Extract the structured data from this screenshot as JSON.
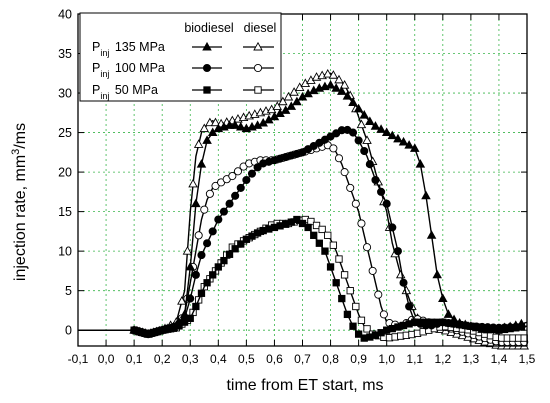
{
  "chart_data": {
    "type": "line",
    "title": "",
    "xlabel": "time from ET start, ms",
    "ylabel": "injection rate, mm3/ms",
    "ylabel_unit_power": "3",
    "xlim": [
      -0.1,
      1.5
    ],
    "ylim": [
      -2,
      40
    ],
    "x_ticks": [
      -0.1,
      0.0,
      0.1,
      0.2,
      0.3,
      0.4,
      0.5,
      0.6,
      0.7,
      0.8,
      0.9,
      1.0,
      1.1,
      1.2,
      1.3,
      1.4,
      1.5
    ],
    "x_tick_labels": [
      "-0,1",
      "0,0",
      "0,1",
      "0,2",
      "0,3",
      "0,4",
      "0,5",
      "0,6",
      "0,7",
      "0,8",
      "0,9",
      "1,0",
      "1,1",
      "1,2",
      "1,3",
      "1,4",
      "1,5"
    ],
    "y_ticks": [
      0,
      5,
      10,
      15,
      20,
      25,
      30,
      35,
      40
    ],
    "y_tick_labels": [
      "0",
      "5",
      "10",
      "15",
      "20",
      "25",
      "30",
      "35",
      "40"
    ],
    "grid": true,
    "legend": {
      "position": "top-left",
      "header_biodiesel": "biodiesel",
      "header_diesel": "diesel",
      "rows": [
        {
          "label": "P",
          "sub": "inj",
          "value": "135 MPa"
        },
        {
          "label": "P",
          "sub": "inj",
          "value": "100 MPa"
        },
        {
          "label": "P",
          "sub": "inj",
          "value": "50 MPa"
        }
      ]
    },
    "series": [
      {
        "fuel": "biodiesel",
        "pressure": "135 MPa",
        "marker": "triangle",
        "filled": true,
        "x": [
          -0.1,
          0.0,
          0.1,
          0.15,
          0.2,
          0.25,
          0.28,
          0.3,
          0.32,
          0.34,
          0.36,
          0.38,
          0.4,
          0.45,
          0.5,
          0.55,
          0.6,
          0.65,
          0.7,
          0.75,
          0.8,
          0.85,
          0.9,
          0.95,
          1.0,
          1.05,
          1.1,
          1.12,
          1.14,
          1.16,
          1.18,
          1.2,
          1.22,
          1.25,
          1.3,
          1.35,
          1.4,
          1.45,
          1.5
        ],
        "y": [
          0,
          0,
          0,
          -0.5,
          0,
          0.5,
          2,
          8,
          16,
          21,
          24,
          25,
          25.5,
          26,
          25.5,
          26,
          27,
          28,
          29.5,
          30.5,
          31,
          30,
          28,
          26,
          25,
          24,
          23,
          21,
          17,
          12,
          7,
          4,
          2,
          1,
          0.5,
          0,
          0.2,
          0.5,
          1
        ]
      },
      {
        "fuel": "biodiesel",
        "pressure": "100 MPa",
        "marker": "circle",
        "filled": true,
        "x": [
          -0.1,
          0.0,
          0.1,
          0.15,
          0.2,
          0.25,
          0.28,
          0.3,
          0.32,
          0.34,
          0.36,
          0.38,
          0.4,
          0.45,
          0.5,
          0.55,
          0.6,
          0.65,
          0.7,
          0.75,
          0.8,
          0.85,
          0.88,
          0.9,
          0.93,
          0.96,
          1.0,
          1.02,
          1.04,
          1.06,
          1.08,
          1.1,
          1.15,
          1.2,
          1.3,
          1.4,
          1.5
        ],
        "y": [
          0,
          0,
          0,
          -0.5,
          0,
          0.5,
          1.5,
          4,
          7,
          9.5,
          11,
          12.5,
          14,
          16.5,
          19,
          21,
          21.5,
          22,
          22.5,
          23.5,
          24.5,
          25.5,
          25,
          24,
          22,
          19,
          16,
          13,
          10,
          6,
          3,
          1,
          0.5,
          1,
          0.5,
          0.3,
          0.5
        ]
      },
      {
        "fuel": "biodiesel",
        "pressure": "50 MPa",
        "marker": "square",
        "filled": true,
        "x": [
          -0.1,
          0.0,
          0.1,
          0.15,
          0.2,
          0.25,
          0.3,
          0.32,
          0.35,
          0.4,
          0.45,
          0.5,
          0.55,
          0.6,
          0.65,
          0.68,
          0.7,
          0.72,
          0.75,
          0.78,
          0.8,
          0.82,
          0.84,
          0.86,
          0.88,
          0.9,
          0.92,
          0.95,
          1.0,
          1.05,
          1.1,
          1.2,
          1.3,
          1.4,
          1.5
        ],
        "y": [
          0,
          0,
          0,
          -0.5,
          0,
          0.3,
          1.5,
          3,
          5.5,
          8,
          10,
          11.5,
          12.5,
          13,
          13.5,
          14,
          13.5,
          13,
          11.5,
          10,
          8,
          6,
          4,
          2,
          0.5,
          -0.5,
          -1,
          -0.8,
          0,
          0.5,
          1,
          1,
          0.5,
          0,
          0.5
        ]
      },
      {
        "fuel": "diesel",
        "pressure": "135 MPa",
        "marker": "triangle",
        "filled": false,
        "x": [
          -0.1,
          0.0,
          0.1,
          0.15,
          0.2,
          0.25,
          0.28,
          0.3,
          0.32,
          0.34,
          0.36,
          0.38,
          0.4,
          0.45,
          0.5,
          0.55,
          0.6,
          0.65,
          0.7,
          0.75,
          0.8,
          0.82,
          0.85,
          0.88,
          0.9,
          0.93,
          0.96,
          1.0,
          1.02,
          1.05,
          1.08,
          1.1,
          1.12,
          1.15,
          1.2,
          1.25,
          1.3,
          1.4,
          1.5
        ],
        "y": [
          0,
          0,
          0,
          -0.5,
          0,
          1,
          5,
          15,
          22,
          25,
          26,
          26.5,
          26,
          26.5,
          27,
          27.5,
          28,
          29.5,
          31,
          32,
          32.5,
          32,
          31,
          29,
          27,
          24,
          20,
          15,
          11,
          7,
          4,
          2,
          1,
          0.5,
          0,
          -0.5,
          -1,
          -2,
          -2
        ]
      },
      {
        "fuel": "diesel",
        "pressure": "100 MPa",
        "marker": "circle",
        "filled": false,
        "x": [
          -0.1,
          0.0,
          0.1,
          0.15,
          0.2,
          0.25,
          0.28,
          0.3,
          0.32,
          0.34,
          0.36,
          0.38,
          0.4,
          0.45,
          0.5,
          0.55,
          0.6,
          0.65,
          0.7,
          0.75,
          0.8,
          0.82,
          0.84,
          0.86,
          0.88,
          0.9,
          0.92,
          0.94,
          0.96,
          0.98,
          1.0,
          1.05,
          1.1,
          1.2,
          1.3,
          1.4,
          1.5
        ],
        "y": [
          0,
          0,
          0,
          -0.5,
          0,
          0.5,
          2,
          6,
          10,
          14,
          16.5,
          18,
          18.5,
          19.5,
          21,
          21.5,
          21.5,
          22,
          22.5,
          23,
          23.5,
          22.5,
          21,
          19,
          17,
          15,
          12,
          9,
          6,
          3,
          1,
          0.5,
          1.5,
          0.5,
          -0.5,
          -1.5,
          -1.5
        ]
      },
      {
        "fuel": "diesel",
        "pressure": "50 MPa",
        "marker": "square",
        "filled": false,
        "x": [
          -0.1,
          0.0,
          0.1,
          0.15,
          0.2,
          0.25,
          0.3,
          0.32,
          0.35,
          0.4,
          0.45,
          0.5,
          0.55,
          0.6,
          0.65,
          0.7,
          0.72,
          0.74,
          0.76,
          0.78,
          0.8,
          0.82,
          0.84,
          0.86,
          0.88,
          0.9,
          0.92,
          0.95,
          1.0,
          1.1,
          1.2,
          1.3,
          1.4,
          1.5
        ],
        "y": [
          0,
          0,
          0,
          -0.5,
          0,
          0.3,
          1.5,
          3,
          5.5,
          8,
          10.5,
          11.5,
          12.5,
          13.5,
          13.5,
          14,
          14,
          13.5,
          13,
          12.5,
          11.5,
          10,
          8,
          6,
          4,
          2,
          0.5,
          -0.5,
          -1,
          -0.5,
          0.5,
          0,
          -1,
          -1
        ]
      }
    ]
  }
}
